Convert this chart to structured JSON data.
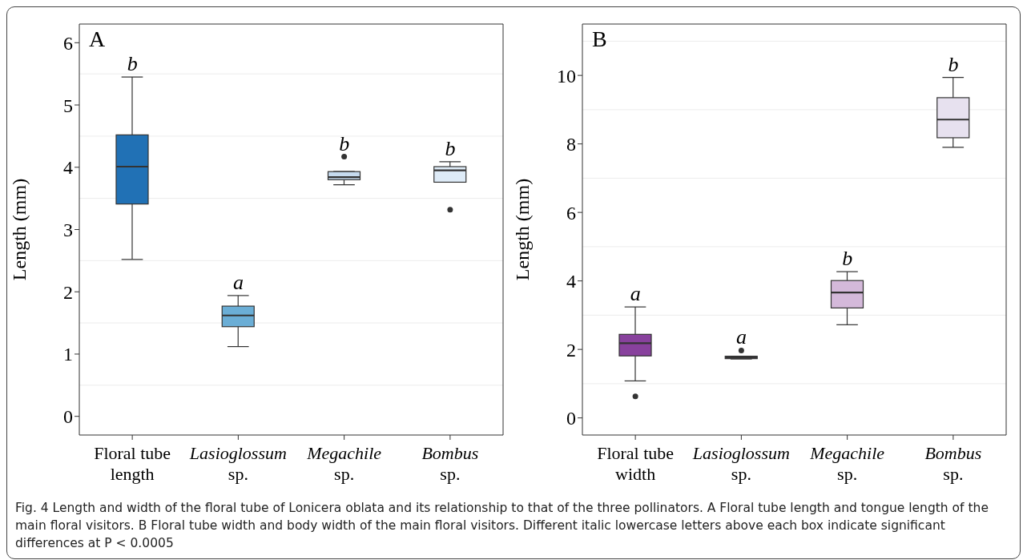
{
  "chart_data": [
    {
      "type": "box",
      "ylabel": "Length (mm)",
      "categories": [
        "Floral tube length",
        "Lasioglossum sp.",
        "Megachile sp.",
        "Bombus sp."
      ],
      "colors": [
        "#2171b5",
        "#6baed6",
        "#c6dbef",
        "#deebf7"
      ],
      "ylim": [
        -0.3,
        6.3
      ],
      "yticks": [
        0,
        1,
        2,
        3,
        4,
        5,
        6
      ],
      "grid": "y",
      "boxes": [
        {
          "low": 2.52,
          "q1": 3.41,
          "median": 4.01,
          "q3": 4.52,
          "high": 5.45
        },
        {
          "low": 1.12,
          "q1": 1.44,
          "median": 1.62,
          "q3": 1.77,
          "high": 1.94
        },
        {
          "low": 3.72,
          "q1": 3.8,
          "median": 3.84,
          "q3": 3.93,
          "high": 3.93,
          "outliers": [
            4.17
          ]
        },
        {
          "low": 3.76,
          "q1": 3.76,
          "median": 3.95,
          "q3": 4.01,
          "high": 4.09,
          "outliers": [
            3.32
          ]
        }
      ],
      "annotations": [
        "A",
        "b",
        "a",
        "b",
        "b",
        "Fig. 4  Length and width of the floral tube of Lonicera oblata and its relationship to that of the three pollinators. A Floral tube length and tongue length of the main floral visitors. B Floral tube width and body width of the main floral visitors. Different italic lowercase letters above each box indicate significant differences at P < 0.0005"
      ]
    },
    {
      "type": "box",
      "ylabel": "Length (mm)",
      "categories": [
        "Floral tube width",
        "Lasioglossum sp.",
        "Megachile sp.",
        "Bombus sp."
      ],
      "colors": [
        "#88419d",
        "#8c6bb1",
        "#d4b9da",
        "#e7e1ef"
      ],
      "ylim": [
        -0.5,
        11.5
      ],
      "yticks": [
        0,
        2,
        4,
        6,
        8,
        10
      ],
      "grid": "y",
      "boxes": [
        {
          "low": 1.08,
          "q1": 1.81,
          "median": 2.18,
          "q3": 2.44,
          "high": 3.24,
          "outliers": [
            0.63
          ]
        },
        {
          "low": 1.72,
          "q1": 1.73,
          "median": 1.77,
          "q3": 1.8,
          "high": 1.8,
          "outliers": [
            1.97
          ]
        },
        {
          "low": 2.72,
          "q1": 3.21,
          "median": 3.66,
          "q3": 4.01,
          "high": 4.27
        },
        {
          "low": 7.9,
          "q1": 8.18,
          "median": 8.71,
          "q3": 9.35,
          "high": 9.94
        }
      ],
      "annotations": [
        "B",
        "a",
        "a",
        "b",
        "b"
      ]
    }
  ]
}
